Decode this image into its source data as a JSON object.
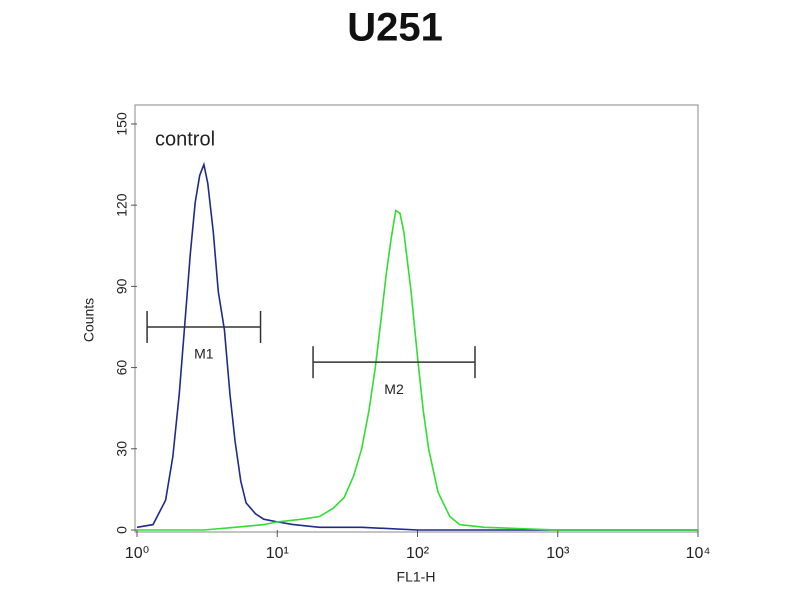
{
  "chart_data": {
    "type": "histogram-overlay",
    "title": "U251",
    "x_label": "FL1-H",
    "y_label": "Counts",
    "annotation": "control",
    "x_log": true,
    "xlim": [
      1,
      10000
    ],
    "ylim": [
      0,
      157
    ],
    "xticks": [
      {
        "value": 1,
        "label": "10⁰"
      },
      {
        "value": 10,
        "label": "10¹"
      },
      {
        "value": 100,
        "label": "10²"
      },
      {
        "value": 1000,
        "label": "10³"
      },
      {
        "value": 10000,
        "label": "10⁴"
      }
    ],
    "yticks": [
      0,
      30,
      60,
      90,
      120,
      150
    ],
    "series": [
      {
        "name": "control",
        "color": "#1f2a8a",
        "x": [
          1,
          1.3,
          1.6,
          1.8,
          2.0,
          2.2,
          2.4,
          2.6,
          2.8,
          3.0,
          3.2,
          3.5,
          3.8,
          4.2,
          4.6,
          5,
          5.5,
          6,
          7,
          8,
          10,
          13,
          20,
          40,
          100,
          300,
          1000,
          10000
        ],
        "values": [
          1,
          2,
          11,
          27,
          50,
          77,
          102,
          121,
          131,
          135,
          128,
          110,
          88,
          74,
          50,
          33,
          18,
          10,
          6,
          4,
          3,
          2,
          1,
          1,
          0,
          0,
          0,
          0
        ]
      },
      {
        "color": "#33dd33",
        "x": [
          1,
          3,
          5,
          8,
          10,
          15,
          20,
          25,
          30,
          35,
          40,
          45,
          50,
          55,
          60,
          65,
          70,
          75,
          80,
          90,
          100,
          110,
          120,
          140,
          170,
          200,
          300,
          1000,
          10000
        ],
        "values": [
          0,
          0,
          1,
          2,
          3,
          4,
          5,
          8,
          12,
          20,
          30,
          44,
          60,
          78,
          95,
          108,
          118,
          117,
          110,
          88,
          64,
          44,
          30,
          14,
          5,
          2,
          1,
          0,
          0
        ]
      }
    ],
    "markers": [
      {
        "label": "M1",
        "x": [
          1.18,
          7.6
        ],
        "y": 75
      },
      {
        "label": "M2",
        "x": [
          18,
          257
        ],
        "y": 62
      }
    ]
  }
}
